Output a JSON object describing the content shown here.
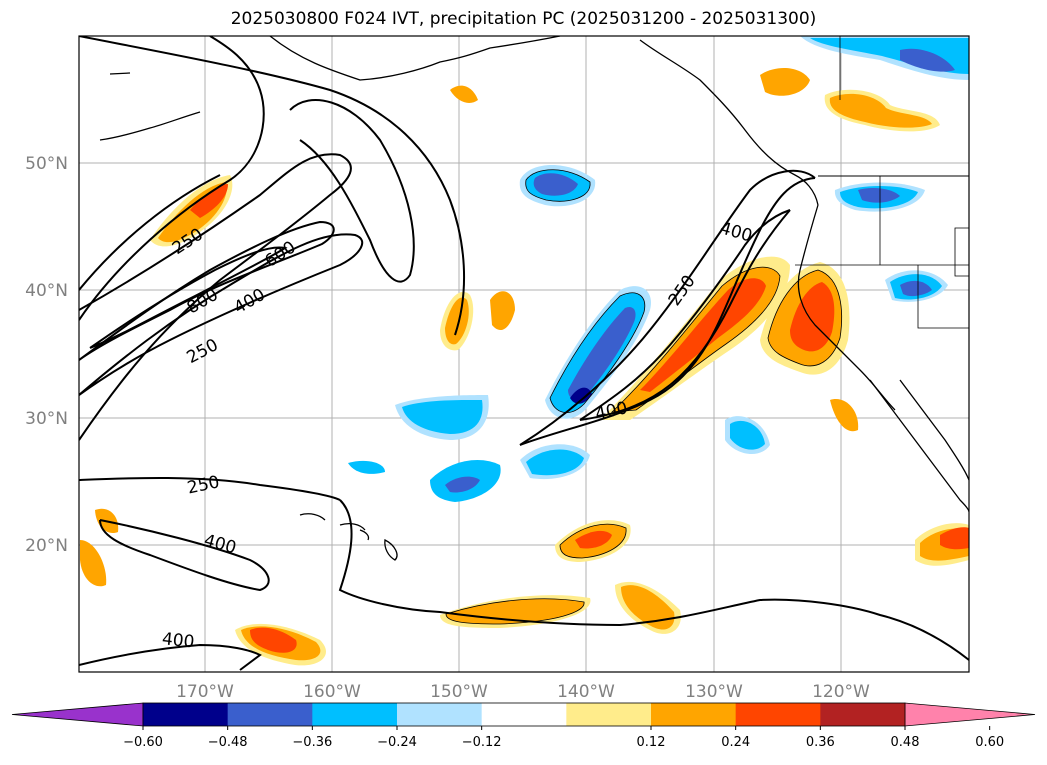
{
  "title": "2025030800 F024 IVT, precipitation PC (2025031200 - 2025031300)",
  "map": {
    "lat_ticks": [
      "50°N",
      "40°N",
      "30°N",
      "20°N"
    ],
    "lon_ticks": [
      "170°W",
      "160°W",
      "150°W",
      "140°W",
      "130°W",
      "120°W"
    ],
    "grid": true,
    "contour_labels": [
      "250",
      "600",
      "800",
      "400",
      "250",
      "250",
      "400",
      "250",
      "400",
      "400",
      "400"
    ]
  },
  "colorbar": {
    "orientation": "horizontal",
    "extend": "both",
    "colors": [
      "#9932CC",
      "#00008B",
      "#3A5FCD",
      "#00BFFF",
      "#B0E2FF",
      "#FFFFFF",
      "#FFEC8B",
      "#FFA500",
      "#FF4500",
      "#B22222",
      "#FF82AB"
    ],
    "tick_labels": [
      "−0.60",
      "−0.48",
      "−0.36",
      "−0.24",
      "−0.12",
      "0.12",
      "0.24",
      "0.36",
      "0.48",
      "0.60"
    ]
  }
}
